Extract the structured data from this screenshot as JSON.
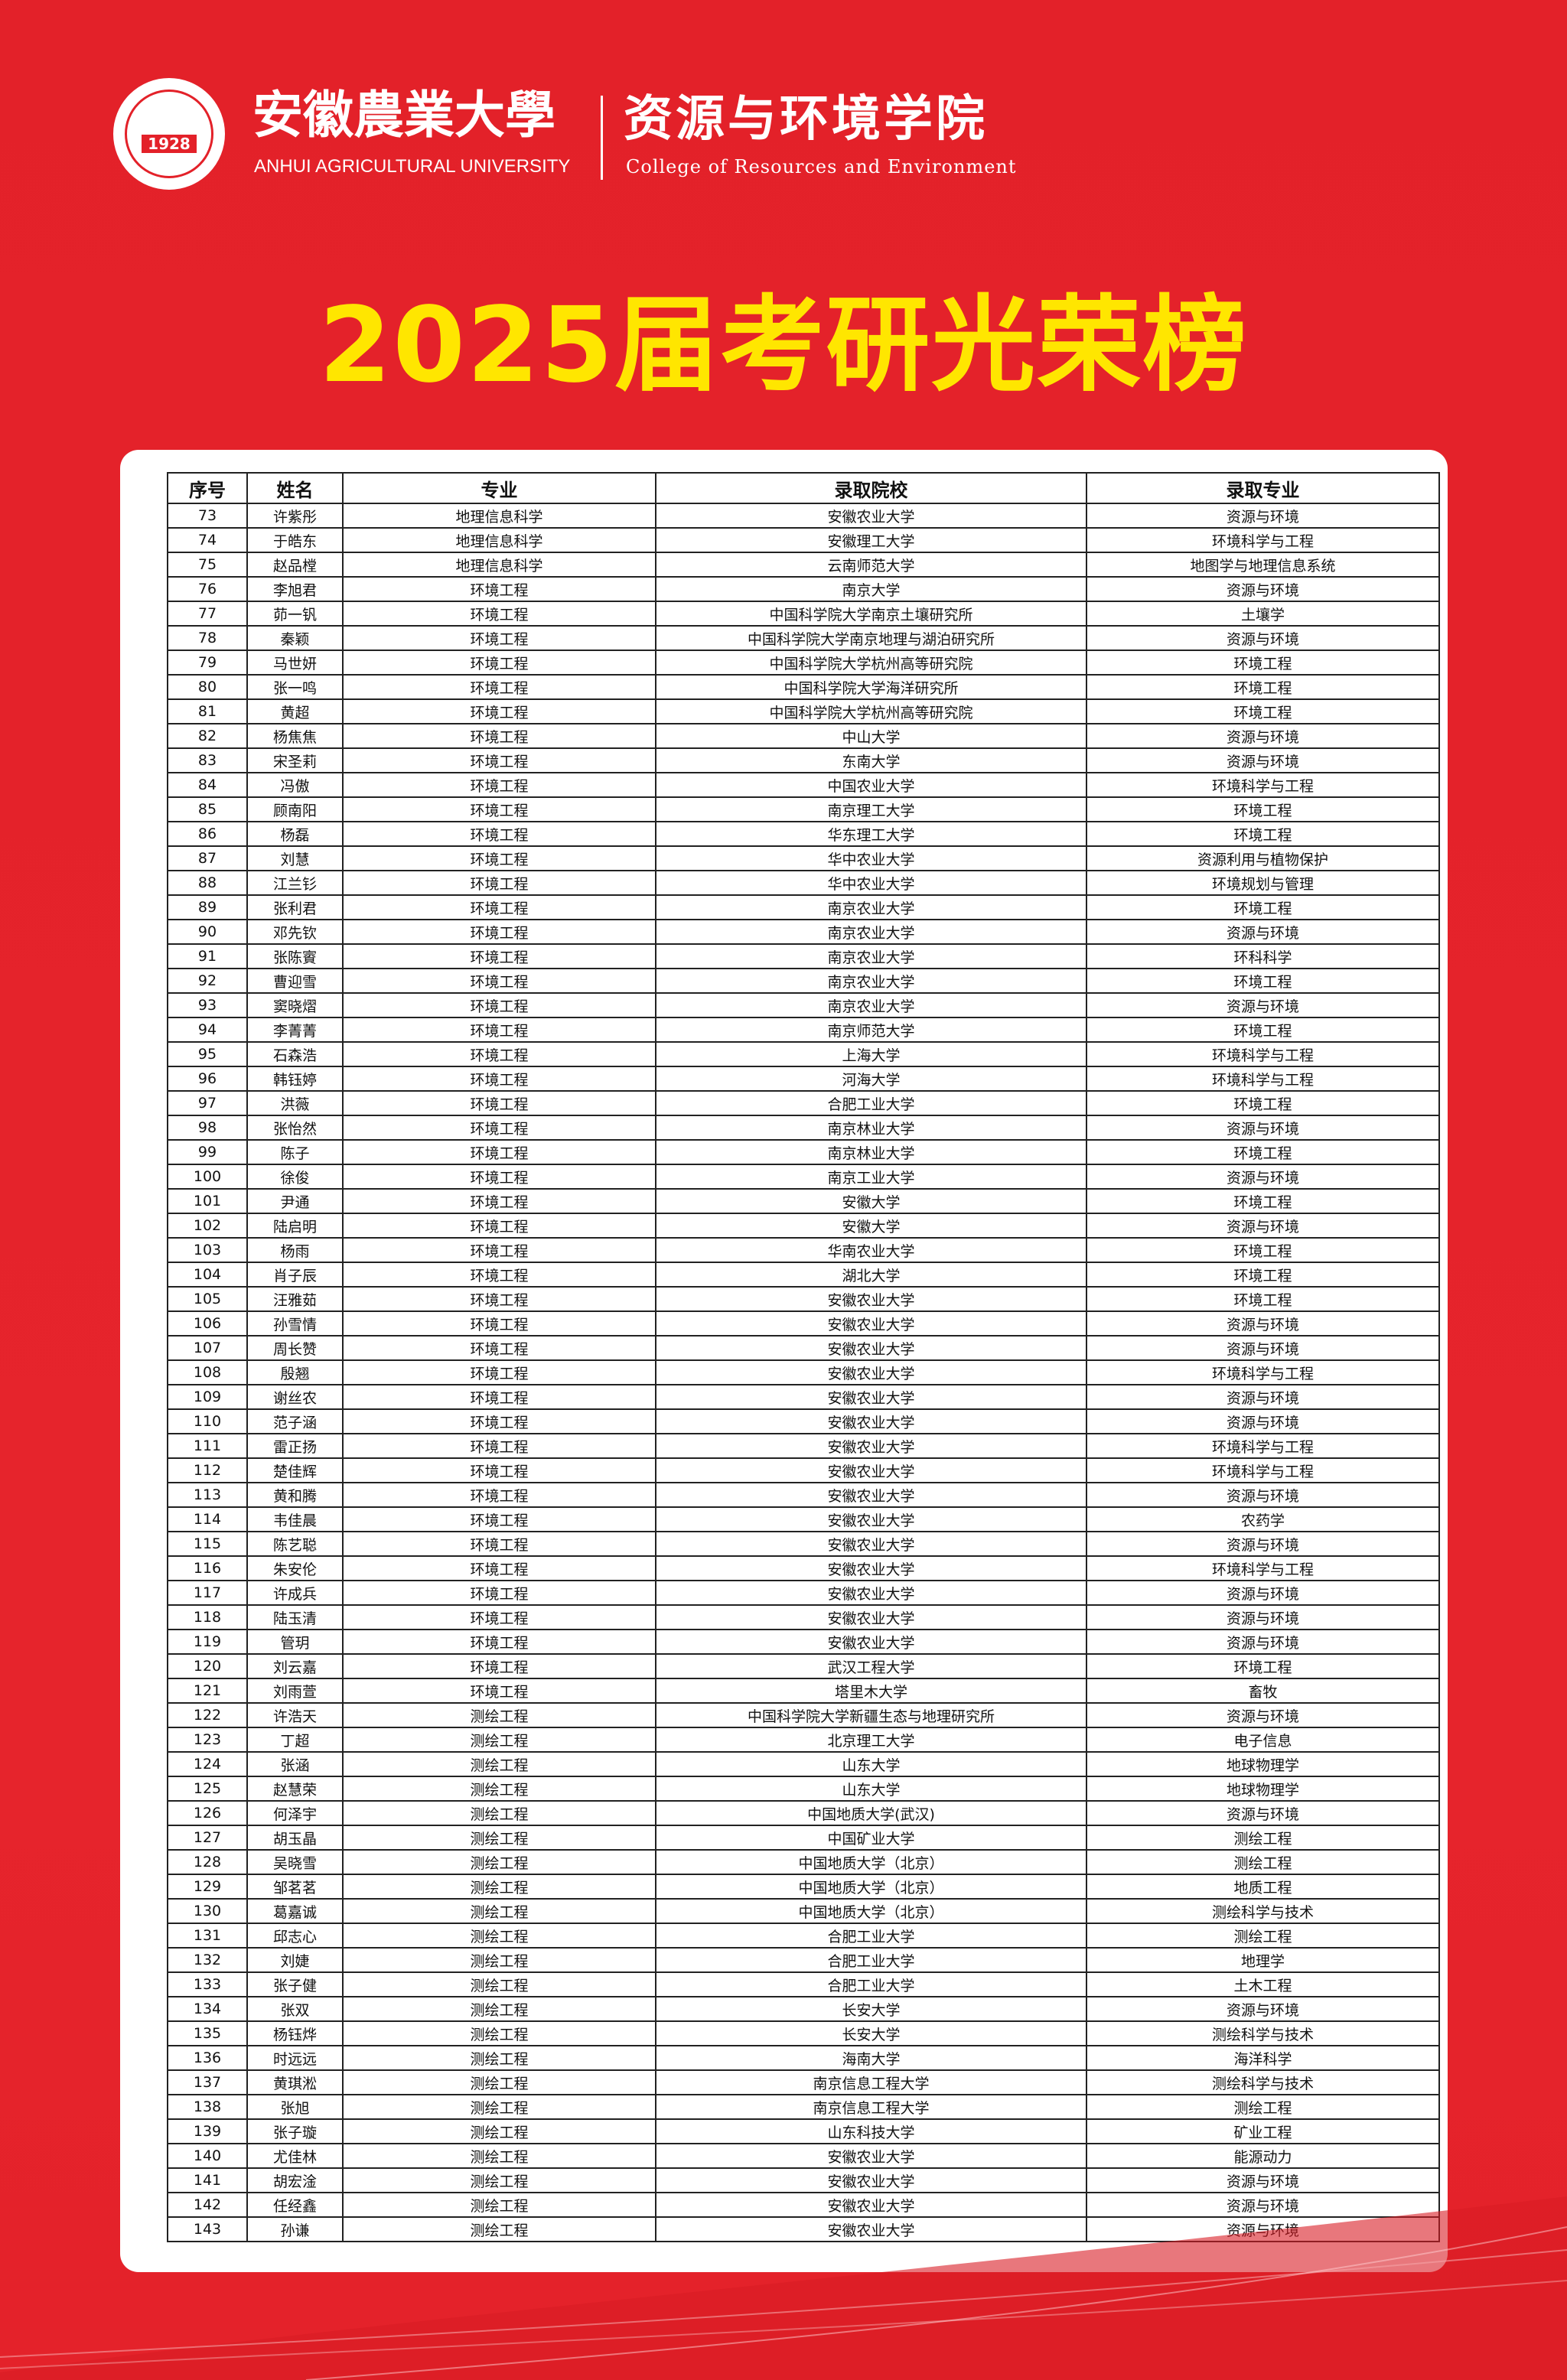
{
  "header": {
    "logo_text": "安徽农业大学 1928",
    "logo_year": "1928",
    "university_cn": "安徽農業大學",
    "university_en": "ANHUI AGRICULTURAL UNIVERSITY",
    "college_cn": "资源与环境学院",
    "college_en": "College of Resources and Environment"
  },
  "title": "2025届考研光荣榜",
  "colors": {
    "background": "#e32129",
    "title": "#ffe600",
    "card": "#ffffff"
  },
  "table": {
    "columns": [
      "序号",
      "姓名",
      "专业",
      "录取院校",
      "录取专业"
    ],
    "rows": [
      [
        "73",
        "许紫彤",
        "地理信息科学",
        "安徽农业大学",
        "资源与环境"
      ],
      [
        "74",
        "于皓东",
        "地理信息科学",
        "安徽理工大学",
        "环境科学与工程"
      ],
      [
        "75",
        "赵品樘",
        "地理信息科学",
        "云南师范大学",
        "地图学与地理信息系统"
      ],
      [
        "76",
        "李旭君",
        "环境工程",
        "南京大学",
        "资源与环境"
      ],
      [
        "77",
        "茆一钒",
        "环境工程",
        "中国科学院大学南京土壤研究所",
        "土壤学"
      ],
      [
        "78",
        "秦颖",
        "环境工程",
        "中国科学院大学南京地理与湖泊研究所",
        "资源与环境"
      ],
      [
        "79",
        "马世妍",
        "环境工程",
        "中国科学院大学杭州高等研究院",
        "环境工程"
      ],
      [
        "80",
        "张一鸣",
        "环境工程",
        "中国科学院大学海洋研究所",
        "环境工程"
      ],
      [
        "81",
        "黄超",
        "环境工程",
        "中国科学院大学杭州高等研究院",
        "环境工程"
      ],
      [
        "82",
        "杨焦焦",
        "环境工程",
        "中山大学",
        "资源与环境"
      ],
      [
        "83",
        "宋圣莉",
        "环境工程",
        "东南大学",
        "资源与环境"
      ],
      [
        "84",
        "冯傲",
        "环境工程",
        "中国农业大学",
        "环境科学与工程"
      ],
      [
        "85",
        "顾南阳",
        "环境工程",
        "南京理工大学",
        "环境工程"
      ],
      [
        "86",
        "杨磊",
        "环境工程",
        "华东理工大学",
        "环境工程"
      ],
      [
        "87",
        "刘慧",
        "环境工程",
        "华中农业大学",
        "资源利用与植物保护"
      ],
      [
        "88",
        "江兰钐",
        "环境工程",
        "华中农业大学",
        "环境规划与管理"
      ],
      [
        "89",
        "张利君",
        "环境工程",
        "南京农业大学",
        "环境工程"
      ],
      [
        "90",
        "邓先钦",
        "环境工程",
        "南京农业大学",
        "资源与环境"
      ],
      [
        "91",
        "张陈賨",
        "环境工程",
        "南京农业大学",
        "环科科学"
      ],
      [
        "92",
        "曹迎雪",
        "环境工程",
        "南京农业大学",
        "环境工程"
      ],
      [
        "93",
        "窦晓熠",
        "环境工程",
        "南京农业大学",
        "资源与环境"
      ],
      [
        "94",
        "李菁菁",
        "环境工程",
        "南京师范大学",
        "环境工程"
      ],
      [
        "95",
        "石森浩",
        "环境工程",
        "上海大学",
        "环境科学与工程"
      ],
      [
        "96",
        "韩钰婷",
        "环境工程",
        "河海大学",
        "环境科学与工程"
      ],
      [
        "97",
        "洪薇",
        "环境工程",
        "合肥工业大学",
        "环境工程"
      ],
      [
        "98",
        "张怡然",
        "环境工程",
        "南京林业大学",
        "资源与环境"
      ],
      [
        "99",
        "陈子",
        "环境工程",
        "南京林业大学",
        "环境工程"
      ],
      [
        "100",
        "徐俊",
        "环境工程",
        "南京工业大学",
        "资源与环境"
      ],
      [
        "101",
        "尹通",
        "环境工程",
        "安徽大学",
        "环境工程"
      ],
      [
        "102",
        "陆启明",
        "环境工程",
        "安徽大学",
        "资源与环境"
      ],
      [
        "103",
        "杨雨",
        "环境工程",
        "华南农业大学",
        "环境工程"
      ],
      [
        "104",
        "肖子辰",
        "环境工程",
        "湖北大学",
        "环境工程"
      ],
      [
        "105",
        "汪雅茹",
        "环境工程",
        "安徽农业大学",
        "环境工程"
      ],
      [
        "106",
        "孙雪情",
        "环境工程",
        "安徽农业大学",
        "资源与环境"
      ],
      [
        "107",
        "周长赞",
        "环境工程",
        "安徽农业大学",
        "资源与环境"
      ],
      [
        "108",
        "殷翘",
        "环境工程",
        "安徽农业大学",
        "环境科学与工程"
      ],
      [
        "109",
        "谢丝农",
        "环境工程",
        "安徽农业大学",
        "资源与环境"
      ],
      [
        "110",
        "范子涵",
        "环境工程",
        "安徽农业大学",
        "资源与环境"
      ],
      [
        "111",
        "雷正扬",
        "环境工程",
        "安徽农业大学",
        "环境科学与工程"
      ],
      [
        "112",
        "楚佳辉",
        "环境工程",
        "安徽农业大学",
        "环境科学与工程"
      ],
      [
        "113",
        "黄和腾",
        "环境工程",
        "安徽农业大学",
        "资源与环境"
      ],
      [
        "114",
        "韦佳晨",
        "环境工程",
        "安徽农业大学",
        "农药学"
      ],
      [
        "115",
        "陈艺聪",
        "环境工程",
        "安徽农业大学",
        "资源与环境"
      ],
      [
        "116",
        "朱安伦",
        "环境工程",
        "安徽农业大学",
        "环境科学与工程"
      ],
      [
        "117",
        "许成兵",
        "环境工程",
        "安徽农业大学",
        "资源与环境"
      ],
      [
        "118",
        "陆玉清",
        "环境工程",
        "安徽农业大学",
        "资源与环境"
      ],
      [
        "119",
        "管玥",
        "环境工程",
        "安徽农业大学",
        "资源与环境"
      ],
      [
        "120",
        "刘云嘉",
        "环境工程",
        "武汉工程大学",
        "环境工程"
      ],
      [
        "121",
        "刘雨萱",
        "环境工程",
        "塔里木大学",
        "畜牧"
      ],
      [
        "122",
        "许浩天",
        "测绘工程",
        "中国科学院大学新疆生态与地理研究所",
        "资源与环境"
      ],
      [
        "123",
        "丁超",
        "测绘工程",
        "北京理工大学",
        "电子信息"
      ],
      [
        "124",
        "张涵",
        "测绘工程",
        "山东大学",
        "地球物理学"
      ],
      [
        "125",
        "赵慧荣",
        "测绘工程",
        "山东大学",
        "地球物理学"
      ],
      [
        "126",
        "何泽宇",
        "测绘工程",
        "中国地质大学(武汉)",
        "资源与环境"
      ],
      [
        "127",
        "胡玉晶",
        "测绘工程",
        "中国矿业大学",
        "测绘工程"
      ],
      [
        "128",
        "吴晓雪",
        "测绘工程",
        "中国地质大学（北京）",
        "测绘工程"
      ],
      [
        "129",
        "邹茗茗",
        "测绘工程",
        "中国地质大学（北京）",
        "地质工程"
      ],
      [
        "130",
        "葛嘉诚",
        "测绘工程",
        "中国地质大学（北京）",
        "测绘科学与技术"
      ],
      [
        "131",
        "邱志心",
        "测绘工程",
        "合肥工业大学",
        "测绘工程"
      ],
      [
        "132",
        "刘婕",
        "测绘工程",
        "合肥工业大学",
        "地理学"
      ],
      [
        "133",
        "张子健",
        "测绘工程",
        "合肥工业大学",
        "土木工程"
      ],
      [
        "134",
        "张双",
        "测绘工程",
        "长安大学",
        "资源与环境"
      ],
      [
        "135",
        "杨钰烨",
        "测绘工程",
        "长安大学",
        "测绘科学与技术"
      ],
      [
        "136",
        "时远远",
        "测绘工程",
        "海南大学",
        "海洋科学"
      ],
      [
        "137",
        "黄琪淞",
        "测绘工程",
        "南京信息工程大学",
        "测绘科学与技术"
      ],
      [
        "138",
        "张旭",
        "测绘工程",
        "南京信息工程大学",
        "测绘工程"
      ],
      [
        "139",
        "张子璇",
        "测绘工程",
        "山东科技大学",
        "矿业工程"
      ],
      [
        "140",
        "尤佳林",
        "测绘工程",
        "安徽农业大学",
        "能源动力"
      ],
      [
        "141",
        "胡宏淦",
        "测绘工程",
        "安徽农业大学",
        "资源与环境"
      ],
      [
        "142",
        "任经鑫",
        "测绘工程",
        "安徽农业大学",
        "资源与环境"
      ],
      [
        "143",
        "孙谦",
        "测绘工程",
        "安徽农业大学",
        "资源与环境"
      ]
    ]
  }
}
